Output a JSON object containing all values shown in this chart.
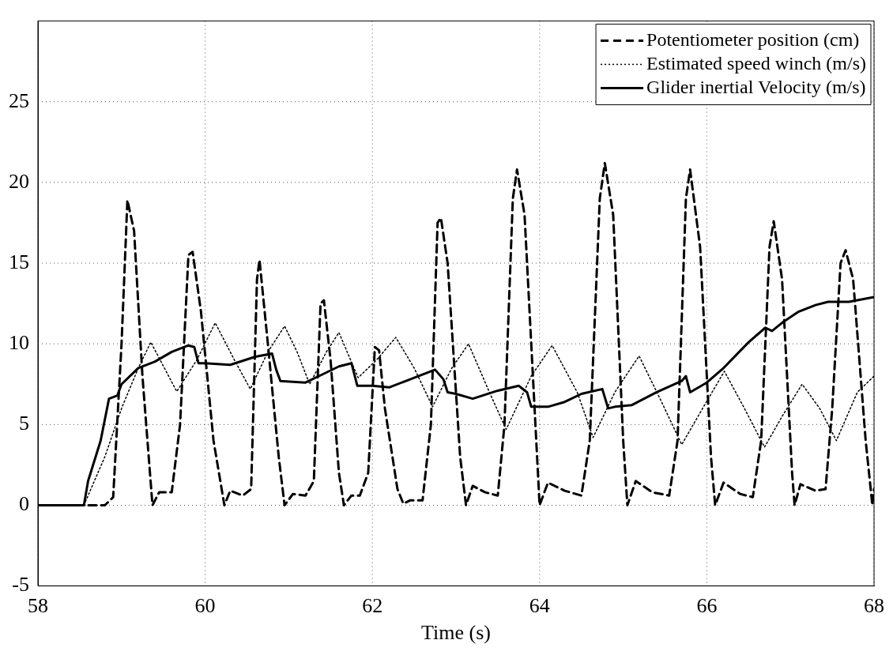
{
  "chart_data": {
    "type": "line",
    "xlabel": "Time (s)",
    "xlim": [
      58,
      68
    ],
    "xticks": [
      58,
      60,
      62,
      64,
      66,
      68
    ],
    "ylim": [
      -5,
      30
    ],
    "yticks": [
      -5,
      0,
      5,
      10,
      15,
      20,
      25
    ],
    "grid": true,
    "legend": "top right",
    "marker": "none",
    "series": [
      {
        "name": "Potentiometer position (cm)",
        "color": "#000000",
        "line_style": "dashed",
        "x": [
          58,
          58.8,
          58.9,
          59.0,
          59.07,
          59.15,
          59.25,
          59.37,
          59.45,
          59.6,
          59.7,
          59.8,
          59.85,
          59.95,
          60.1,
          60.23,
          60.3,
          60.45,
          60.55,
          60.62,
          60.65,
          60.75,
          60.88,
          60.95,
          61.05,
          61.2,
          61.3,
          61.38,
          61.42,
          61.5,
          61.6,
          61.66,
          61.75,
          61.85,
          61.95,
          62.03,
          62.08,
          62.15,
          62.3,
          62.37,
          62.45,
          62.6,
          62.7,
          62.78,
          62.82,
          62.9,
          63.05,
          63.12,
          63.2,
          63.35,
          63.5,
          63.58,
          63.68,
          63.73,
          63.82,
          63.95,
          64.0,
          64.1,
          64.3,
          64.5,
          64.6,
          64.72,
          64.78,
          64.88,
          65.0,
          65.05,
          65.15,
          65.35,
          65.55,
          65.65,
          65.75,
          65.8,
          65.92,
          66.05,
          66.1,
          66.2,
          66.4,
          66.55,
          66.65,
          66.75,
          66.8,
          66.9,
          67.02,
          67.05,
          67.12,
          67.3,
          67.42,
          67.5,
          67.6,
          67.66,
          67.75,
          67.9,
          67.98,
          68
        ],
        "values": [
          0,
          0,
          0.5,
          10,
          18.9,
          17,
          8,
          0,
          0.8,
          0.8,
          5,
          15.5,
          15.7,
          12,
          4,
          0,
          0.9,
          0.6,
          1,
          14,
          15.2,
          10,
          3,
          0,
          0.7,
          0.6,
          1.5,
          12.5,
          12.7,
          9,
          2,
          0,
          0.6,
          0.6,
          2,
          9.8,
          9.6,
          6,
          1,
          0.1,
          0.3,
          0.3,
          5,
          17.5,
          17.8,
          15,
          3,
          0,
          1.2,
          0.8,
          0.6,
          5,
          19,
          20.8,
          18,
          5,
          0,
          1.4,
          0.9,
          0.6,
          4,
          19,
          21.2,
          18,
          4,
          0,
          1.5,
          0.8,
          0.6,
          4,
          19,
          20.8,
          16,
          3,
          0,
          1.4,
          0.7,
          0.5,
          4,
          16,
          17.6,
          14,
          2,
          0,
          1.3,
          0.9,
          1,
          6,
          15,
          15.8,
          14,
          4,
          0,
          1
        ]
      },
      {
        "name": "Estimated speed winch (m/s)",
        "color": "#000000",
        "line_style": "dotted",
        "x": [
          58.55,
          58.8,
          59.0,
          59.2,
          59.35,
          59.66,
          59.9,
          60.12,
          60.35,
          60.54,
          60.75,
          60.95,
          61.1,
          61.25,
          61.45,
          61.6,
          61.83,
          62.05,
          62.28,
          62.5,
          62.72,
          62.95,
          63.15,
          63.4,
          63.6,
          63.9,
          64.15,
          64.45,
          64.64,
          64.9,
          65.19,
          65.45,
          65.7,
          65.95,
          66.21,
          66.45,
          66.69,
          66.9,
          67.14,
          67.35,
          67.55,
          67.8,
          68
        ],
        "values": [
          0,
          3,
          6,
          8.5,
          10.1,
          7.05,
          9,
          11.3,
          9,
          7.2,
          9.5,
          11.1,
          9.5,
          7.5,
          9.5,
          10.7,
          7.9,
          9,
          10.4,
          8.5,
          6.1,
          8.5,
          10,
          7,
          4.7,
          8,
          9.9,
          7,
          4.2,
          7,
          9.25,
          6.5,
          3.76,
          6,
          8.3,
          6,
          3.6,
          5.5,
          7.5,
          6,
          4.0,
          7,
          8.0
        ]
      },
      {
        "name": "Glider inertial Velocity (m/s)",
        "color": "#000000",
        "line_style": "solid",
        "x": [
          58,
          58.55,
          58.6,
          58.75,
          58.85,
          58.95,
          59.0,
          59.2,
          59.4,
          59.6,
          59.8,
          59.87,
          59.92,
          60.0,
          60.3,
          60.6,
          60.8,
          60.85,
          60.9,
          61.2,
          61.4,
          61.6,
          61.75,
          61.82,
          62.0,
          62.2,
          62.5,
          62.75,
          62.85,
          62.9,
          63.0,
          63.2,
          63.5,
          63.75,
          63.85,
          63.9,
          64.1,
          64.3,
          64.5,
          64.75,
          64.82,
          64.9,
          65.1,
          65.4,
          65.7,
          65.75,
          65.8,
          66.0,
          66.2,
          66.5,
          66.7,
          66.78,
          66.9,
          67.1,
          67.3,
          67.45,
          67.7,
          68
        ],
        "values": [
          0,
          0,
          1.5,
          4,
          6.6,
          6.8,
          7.5,
          8.5,
          8.9,
          9.5,
          9.9,
          9.8,
          8.8,
          8.8,
          8.7,
          9.2,
          9.4,
          8.4,
          7.7,
          7.6,
          8.1,
          8.6,
          8.8,
          7.4,
          7.4,
          7.3,
          7.9,
          8.4,
          7.8,
          7.0,
          6.9,
          6.6,
          7.1,
          7.4,
          7.0,
          6.1,
          6.1,
          6.4,
          6.9,
          7.2,
          6.0,
          6.1,
          6.2,
          7.0,
          7.7,
          8.0,
          7.0,
          7.6,
          8.5,
          10.1,
          11.0,
          10.8,
          11.3,
          12.0,
          12.4,
          12.6,
          12.6,
          12.9
        ]
      }
    ]
  }
}
